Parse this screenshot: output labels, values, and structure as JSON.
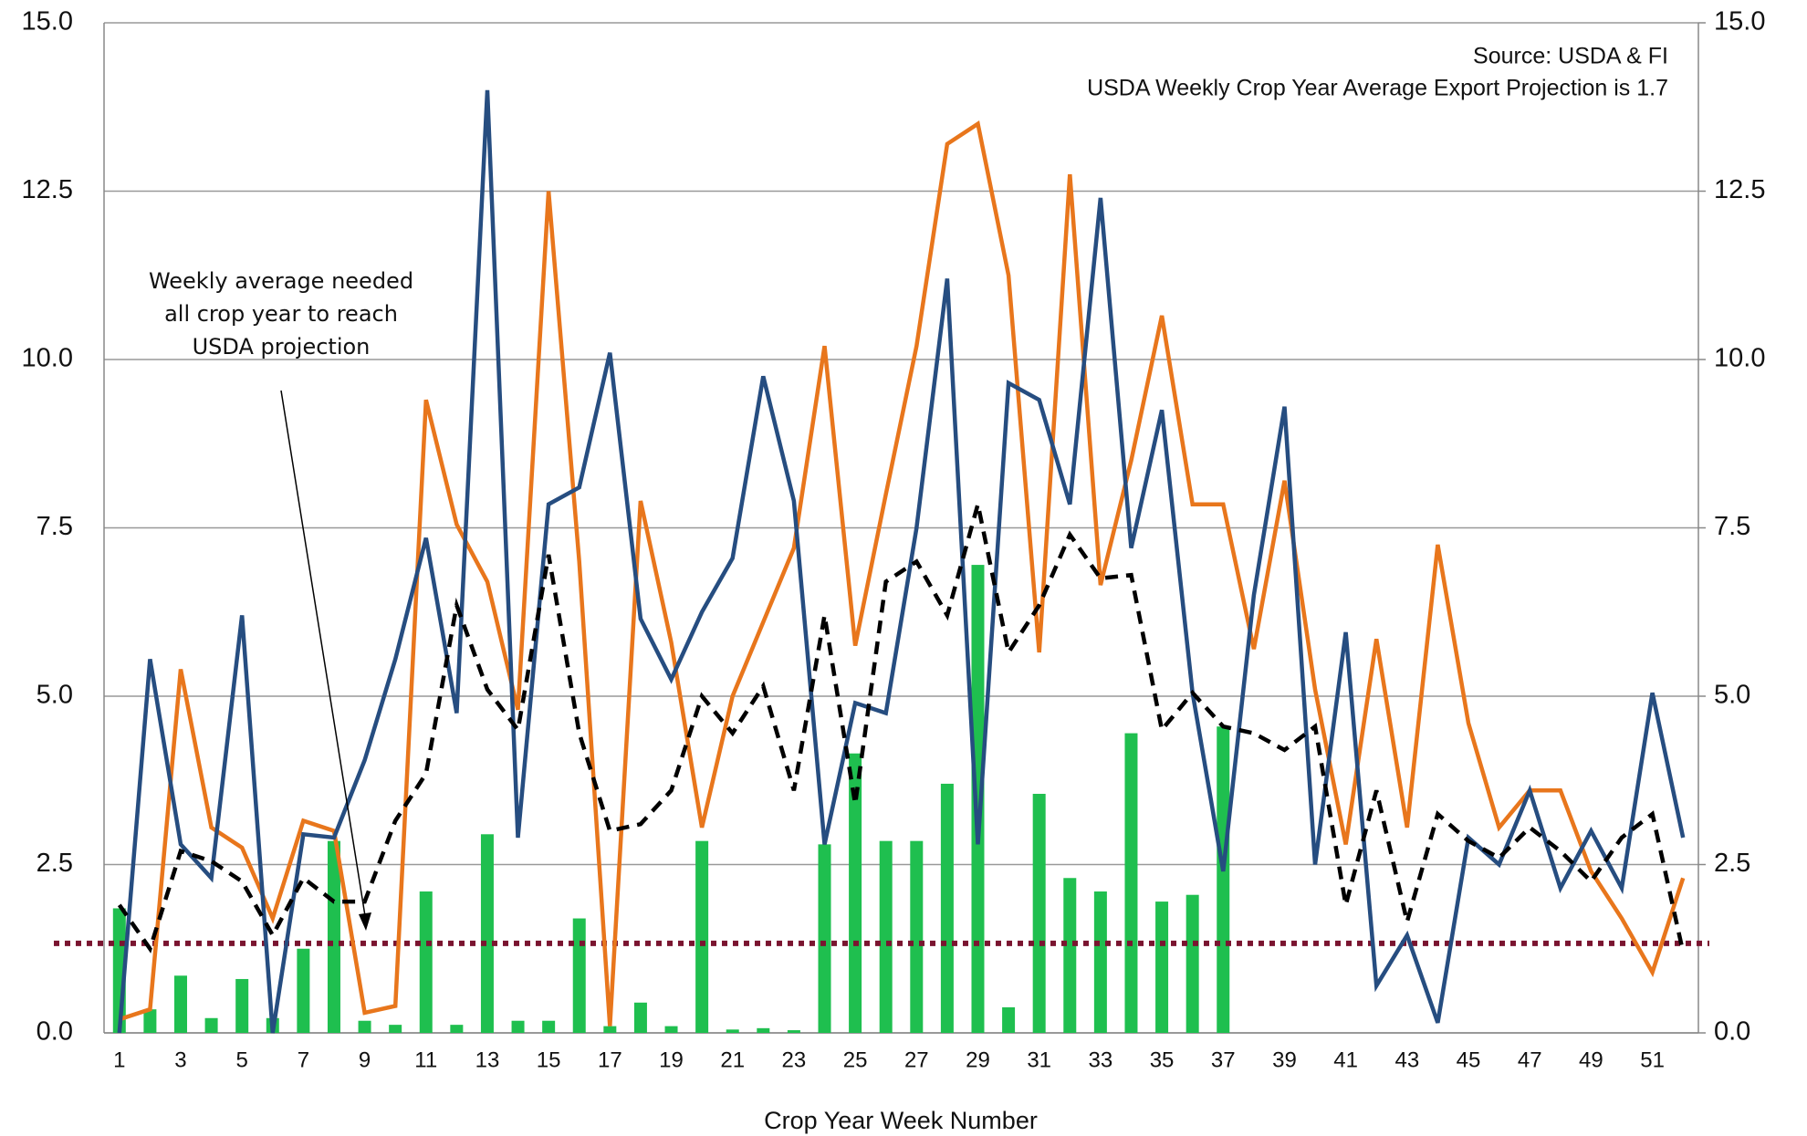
{
  "chart_data": {
    "type": "combo",
    "x_label": "Crop Year Week Number",
    "annotations": [
      "Source: USDA & FI",
      "USDA Weekly Crop Year Average Export Projection is 1.7"
    ],
    "arrow_note": [
      "Weekly average needed",
      "all crop year to reach",
      "USDA projection"
    ],
    "categories": [
      "1",
      null,
      "3",
      null,
      "5",
      null,
      "7",
      null,
      "9",
      null,
      "11",
      null,
      "13",
      null,
      "15",
      null,
      "17",
      null,
      "19",
      null,
      "21",
      null,
      "23",
      null,
      "25",
      null,
      "27",
      null,
      "29",
      null,
      "31",
      null,
      "33",
      null,
      "35",
      null,
      "37",
      null,
      "39",
      null,
      "41",
      null,
      "43",
      null,
      "45",
      null,
      "47",
      null,
      "49",
      null,
      "51",
      null
    ],
    "series": [
      {
        "type": "bar",
        "color": "#1fbf4f",
        "values": [
          1.85,
          0.35,
          0.85,
          0.22,
          0.8,
          0.22,
          1.25,
          2.85,
          0.18,
          0.12,
          2.1,
          0.12,
          2.95,
          0.18,
          0.18,
          1.7,
          0.1,
          0.45,
          0.1,
          2.85,
          0.05,
          0.07,
          0.04,
          2.8,
          4.15,
          2.85,
          2.85,
          3.7,
          6.95,
          0.38,
          3.55,
          2.3,
          2.1,
          4.45,
          1.95,
          2.05,
          4.55,
          null,
          null,
          null,
          null,
          null,
          null,
          null,
          null,
          null,
          null,
          null,
          null,
          null,
          null,
          null
        ]
      },
      {
        "type": "line",
        "color": "#e8761c",
        "values": [
          0.2,
          0.35,
          5.4,
          3.05,
          2.75,
          1.7,
          3.15,
          3.0,
          0.3,
          0.4,
          9.4,
          7.55,
          6.7,
          4.8,
          12.5,
          7.0,
          0.1,
          7.9,
          5.8,
          3.05,
          5.0,
          6.1,
          7.2,
          10.2,
          5.75,
          8.0,
          10.2,
          13.2,
          13.5,
          11.25,
          5.65,
          12.75,
          6.65,
          8.5,
          10.65,
          7.85,
          7.85,
          5.7,
          8.2,
          5.1,
          2.8,
          5.85,
          3.05,
          7.25,
          4.6,
          3.05,
          3.6,
          3.6,
          2.4,
          1.7,
          0.9,
          2.3
        ]
      },
      {
        "type": "line",
        "color": "#264d80",
        "values": [
          0.0,
          5.55,
          2.8,
          2.3,
          6.2,
          0.0,
          2.95,
          2.9,
          4.05,
          5.55,
          7.35,
          4.75,
          14.0,
          2.9,
          7.85,
          8.1,
          10.1,
          6.15,
          5.25,
          6.25,
          7.05,
          9.75,
          7.9,
          2.8,
          4.9,
          4.75,
          7.5,
          11.2,
          2.8,
          9.65,
          9.4,
          7.85,
          12.4,
          7.2,
          9.25,
          5.05,
          2.4,
          6.5,
          9.3,
          2.5,
          5.95,
          0.7,
          1.45,
          0.15,
          2.9,
          2.5,
          3.6,
          2.15,
          3.0,
          2.15,
          5.05,
          2.9
        ]
      },
      {
        "type": "line",
        "color": "#000000",
        "dashed": true,
        "values": [
          1.9,
          1.25,
          2.7,
          2.55,
          2.25,
          1.45,
          2.3,
          1.95,
          1.95,
          3.15,
          3.85,
          6.35,
          5.1,
          4.5,
          7.1,
          4.45,
          3.0,
          3.1,
          3.6,
          5.0,
          4.45,
          5.15,
          3.6,
          6.2,
          3.4,
          6.7,
          7.0,
          6.2,
          7.85,
          5.65,
          6.35,
          7.4,
          6.75,
          6.8,
          4.5,
          5.05,
          4.55,
          4.45,
          4.2,
          4.55,
          1.9,
          3.6,
          1.65,
          3.25,
          2.85,
          2.6,
          3.05,
          2.7,
          2.25,
          2.9,
          3.25,
          1.2
        ]
      }
    ],
    "reference_line": {
      "value": 1.33,
      "color": "#7a1530"
    },
    "ylim": [
      0,
      15
    ],
    "yticks": [
      {
        "value": 0,
        "label": "0.0"
      },
      {
        "value": 2.5,
        "label": "2.5"
      },
      {
        "value": 5,
        "label": "5.0"
      },
      {
        "value": 7.5,
        "label": "7.5"
      },
      {
        "value": 10,
        "label": "10.0"
      },
      {
        "value": 12.5,
        "label": "12.5"
      },
      {
        "value": 15,
        "label": "15.0"
      }
    ],
    "y2lim": [
      0,
      15
    ],
    "y2ticks": [
      {
        "value": 0,
        "label": "0.0"
      },
      {
        "value": 2.5,
        "label": "2.5"
      },
      {
        "value": 5,
        "label": "5.0"
      },
      {
        "value": 7.5,
        "label": "7.5"
      },
      {
        "value": 10,
        "label": "10.0"
      },
      {
        "value": 12.5,
        "label": "12.5"
      },
      {
        "value": 15,
        "label": "15.0"
      }
    ],
    "grid": true
  }
}
